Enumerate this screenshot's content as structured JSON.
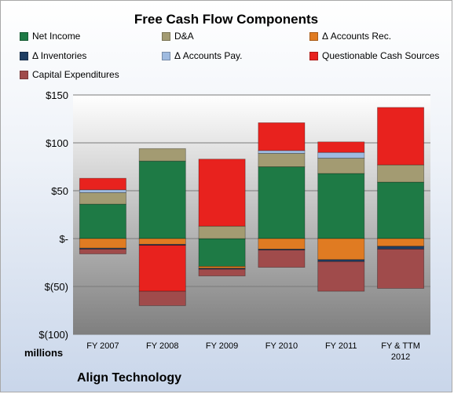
{
  "chart_data": {
    "type": "bar",
    "stacked": true,
    "title": "Free Cash Flow Components",
    "units_label": "millions",
    "company": "Align Technology",
    "categories": [
      "FY 2007",
      "FY 2008",
      "FY 2009",
      "FY 2010",
      "FY 2011",
      "FY & TTM 2012"
    ],
    "category_lines": [
      [
        "FY 2007"
      ],
      [
        "FY 2008"
      ],
      [
        "FY 2009"
      ],
      [
        "FY 2010"
      ],
      [
        "FY 2011"
      ],
      [
        "FY & TTM",
        "2012"
      ]
    ],
    "ylim": [
      -100,
      150
    ],
    "yticks": [
      150,
      100,
      50,
      0,
      -50,
      -100
    ],
    "ytick_labels": [
      "$150",
      "$100",
      "$50",
      "$-",
      "$(50)",
      "$(100)"
    ],
    "grid": true,
    "legend_position": "top",
    "series": [
      {
        "name": "Net Income",
        "color": "#1e7a45",
        "values": [
          36,
          81,
          -29,
          75,
          68,
          59
        ]
      },
      {
        "name": "D&A",
        "color": "#a39b72",
        "values": [
          12,
          13,
          13,
          14,
          16,
          18
        ]
      },
      {
        "name": "Δ Accounts Rec.",
        "color": "#e07b22",
        "values": [
          -10,
          -6,
          -2,
          -11,
          -22,
          -8
        ]
      },
      {
        "name": "Δ Inventories",
        "color": "#1f3e63",
        "values": [
          -1,
          -1,
          -1,
          -1,
          -2,
          -3
        ]
      },
      {
        "name": "Δ Accounts Pay.",
        "color": "#9fbbe0",
        "values": [
          3,
          0,
          0,
          3,
          6,
          0
        ]
      },
      {
        "name": "Questionable Cash Sources",
        "color": "#e8221e",
        "values": [
          12,
          -48,
          70,
          29,
          11,
          60
        ]
      },
      {
        "name": "Capital Expenditures",
        "color": "#a04b4b",
        "values": [
          -5,
          -15,
          -7,
          -18,
          -31,
          -41
        ]
      }
    ]
  }
}
